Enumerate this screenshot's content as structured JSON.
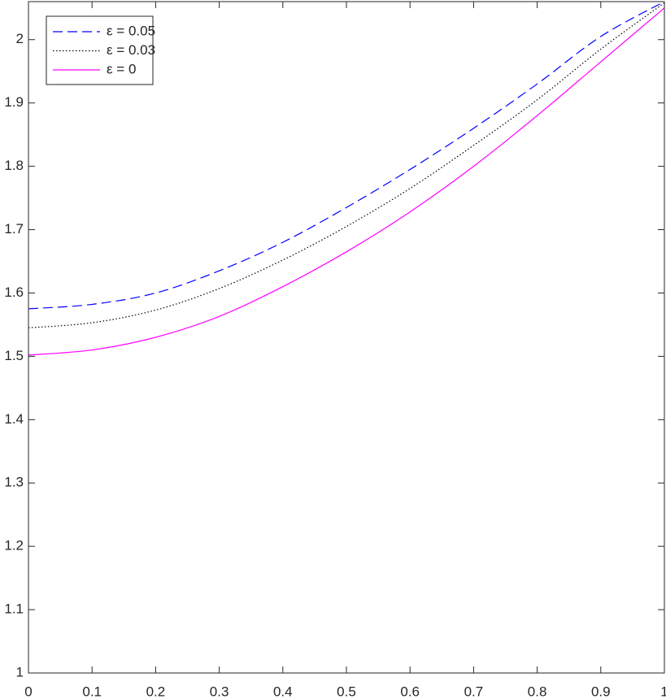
{
  "chart_data": {
    "type": "line",
    "x": [
      0,
      0.1,
      0.2,
      0.3,
      0.4,
      0.5,
      0.6,
      0.7,
      0.8,
      0.9,
      1
    ],
    "series": [
      {
        "name": "ε = 0.05",
        "color": "#0000ff",
        "linestyle": "dashed",
        "values": [
          1.575,
          1.582,
          1.6,
          1.635,
          1.68,
          1.735,
          1.795,
          1.86,
          1.93,
          2.005,
          2.06
        ]
      },
      {
        "name": "ε = 0.03",
        "color": "#000000",
        "linestyle": "dotted",
        "values": [
          1.545,
          1.553,
          1.573,
          1.607,
          1.652,
          1.705,
          1.765,
          1.833,
          1.905,
          1.985,
          2.058
        ]
      },
      {
        "name": "ε = 0",
        "color": "#ff00ff",
        "linestyle": "solid",
        "values": [
          1.502,
          1.51,
          1.53,
          1.563,
          1.61,
          1.665,
          1.728,
          1.8,
          1.88,
          1.965,
          2.05
        ]
      }
    ],
    "xlim": [
      0,
      1
    ],
    "ylim": [
      1,
      2.06
    ],
    "xticks": [
      0,
      0.1,
      0.2,
      0.3,
      0.4,
      0.5,
      0.6,
      0.7,
      0.8,
      0.9,
      1
    ],
    "yticks": [
      1,
      1.1,
      1.2,
      1.3,
      1.4,
      1.5,
      1.6,
      1.7,
      1.8,
      1.9,
      2
    ],
    "legend": "top-left"
  }
}
